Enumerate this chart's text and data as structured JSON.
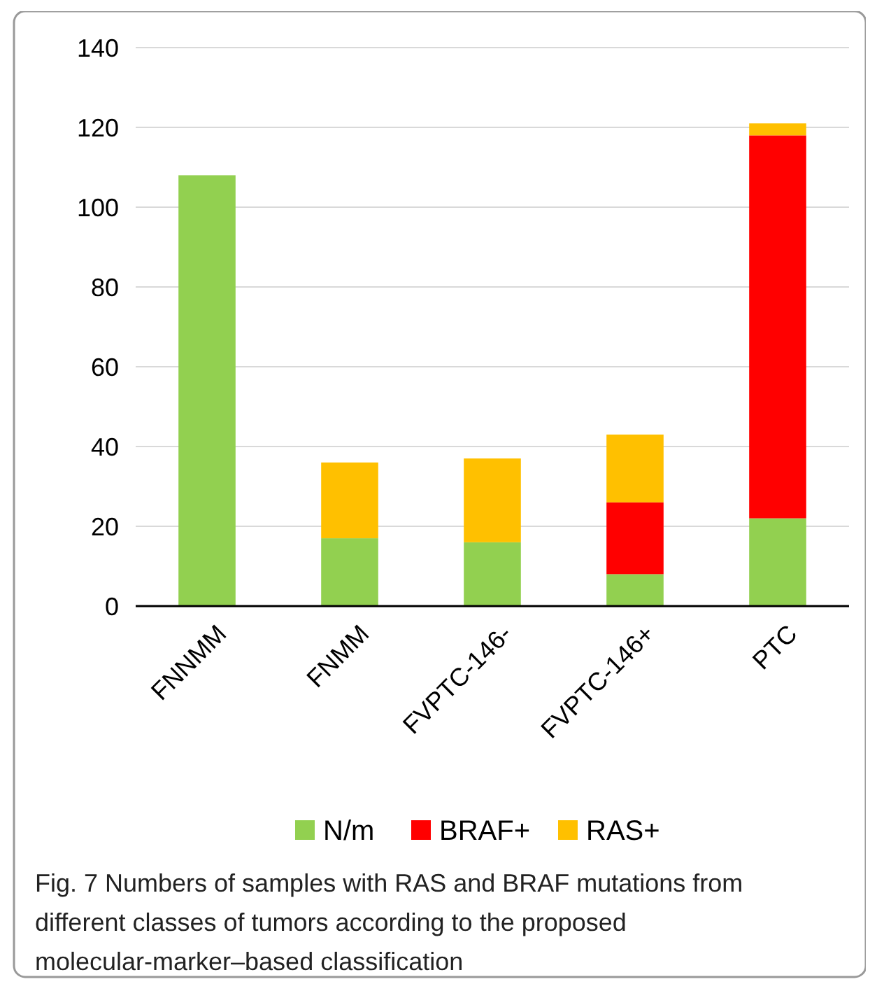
{
  "chart_data": {
    "type": "bar",
    "stacked": true,
    "categories": [
      "FNNMM",
      "FNMM",
      "FVPTC-146-",
      "FVPTC-146+",
      "PTC"
    ],
    "series": [
      {
        "name": "N/m",
        "color": "#92d050",
        "values": [
          108,
          17,
          16,
          8,
          22
        ]
      },
      {
        "name": "BRAF+",
        "color": "#ff0000",
        "values": [
          0,
          0,
          0,
          18,
          96
        ]
      },
      {
        "name": "RAS+",
        "color": "#ffc000",
        "values": [
          0,
          19,
          21,
          17,
          3
        ]
      }
    ],
    "ylim": [
      0,
      140
    ],
    "yticks": [
      0,
      20,
      40,
      60,
      80,
      100,
      120,
      140
    ],
    "grid": "y",
    "legend": "bottom",
    "annotations": [
      "Fig. 7 Numbers of samples with RAS and BRAF mutations from different classes of tumors according to the proposed molecular-marker–based classification"
    ]
  }
}
